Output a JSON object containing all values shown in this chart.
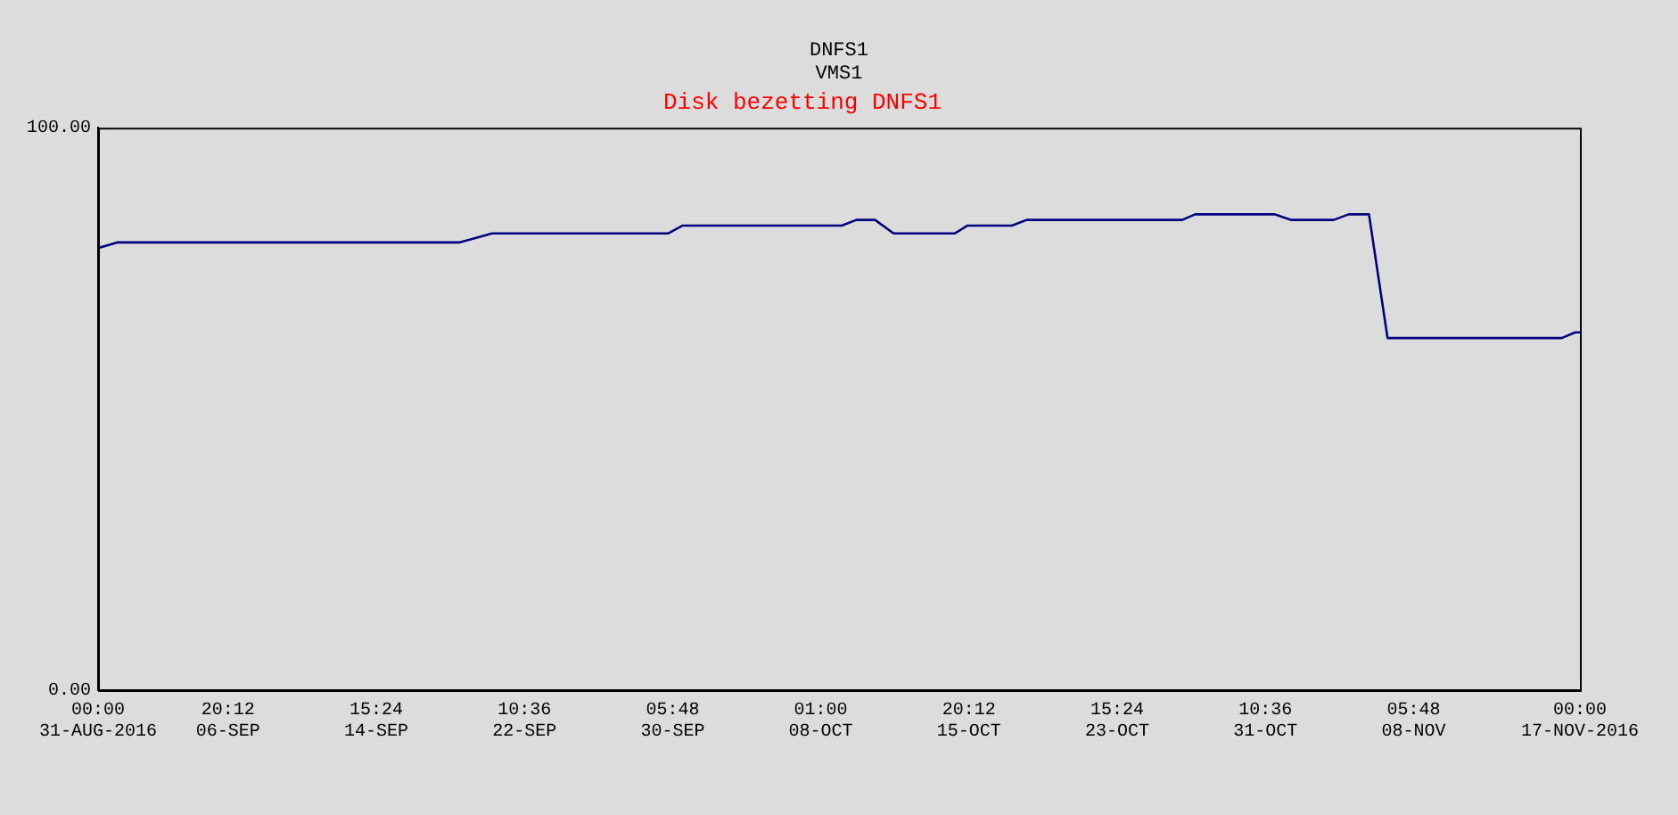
{
  "chart_data": {
    "type": "line",
    "title": "Disk bezetting DNFS1",
    "annotations": [
      "DNFS1",
      "VMS1"
    ],
    "x": [
      "2016-08-31T00:00",
      "2016-09-01T00:00",
      "2016-09-19T00:00",
      "2016-09-20T18:00",
      "2016-09-30T00:00",
      "2016-09-30T18:30",
      "2016-10-09T03:30",
      "2016-10-09T22:00",
      "2016-10-10T21:30",
      "2016-10-11T21:00",
      "2016-10-15T02:00",
      "2016-10-15T18:30",
      "2016-10-18T02:30",
      "2016-10-18T21:00",
      "2016-10-27T01:30",
      "2016-10-27T18:00",
      "2016-10-31T22:00",
      "2016-11-01T19:30",
      "2016-11-04T01:00",
      "2016-11-04T20:00",
      "2016-11-05T21:30",
      "2016-11-06T21:00",
      "2016-11-16T01:00",
      "2016-11-16T18:00",
      "2016-11-17T00:00"
    ],
    "series": [
      {
        "color": "#000080",
        "values": [
          78.6,
          79.6,
          79.6,
          81.2,
          81.2,
          82.6,
          82.6,
          83.6,
          83.6,
          81.2,
          81.2,
          82.6,
          82.6,
          83.6,
          83.6,
          84.6,
          84.6,
          83.6,
          83.6,
          84.6,
          84.6,
          62.6,
          62.6,
          63.6,
          63.6
        ]
      }
    ],
    "xlim": [
      "2016-08-31T00:00",
      "2016-11-17T00:00"
    ],
    "xticks": [
      {
        "value": "2016-08-31T00:00",
        "label": "00:00\n31-AUG-2016"
      },
      {
        "value": "2016-09-06T20:12",
        "label": "20:12\n06-SEP"
      },
      {
        "value": "2016-09-14T15:24",
        "label": "15:24\n14-SEP"
      },
      {
        "value": "2016-09-22T10:36",
        "label": "10:36\n22-SEP"
      },
      {
        "value": "2016-09-30T05:48",
        "label": "05:48\n30-SEP"
      },
      {
        "value": "2016-10-08T01:00",
        "label": "01:00\n08-OCT"
      },
      {
        "value": "2016-10-15T20:12",
        "label": "20:12\n15-OCT"
      },
      {
        "value": "2016-10-23T15:24",
        "label": "15:24\n23-OCT"
      },
      {
        "value": "2016-10-31T10:36",
        "label": "10:36\n31-OCT"
      },
      {
        "value": "2016-11-08T05:48",
        "label": "05:48\n08-NOV"
      },
      {
        "value": "2016-11-17T00:00",
        "label": "00:00\n17-NOV-2016"
      }
    ],
    "ylim": [
      0,
      100
    ],
    "yticks": [
      {
        "value": 0,
        "label": "0.00"
      },
      {
        "value": 100,
        "label": "100.00"
      }
    ],
    "grid": false,
    "legend": false,
    "marker": "none",
    "line_style": "solid"
  }
}
